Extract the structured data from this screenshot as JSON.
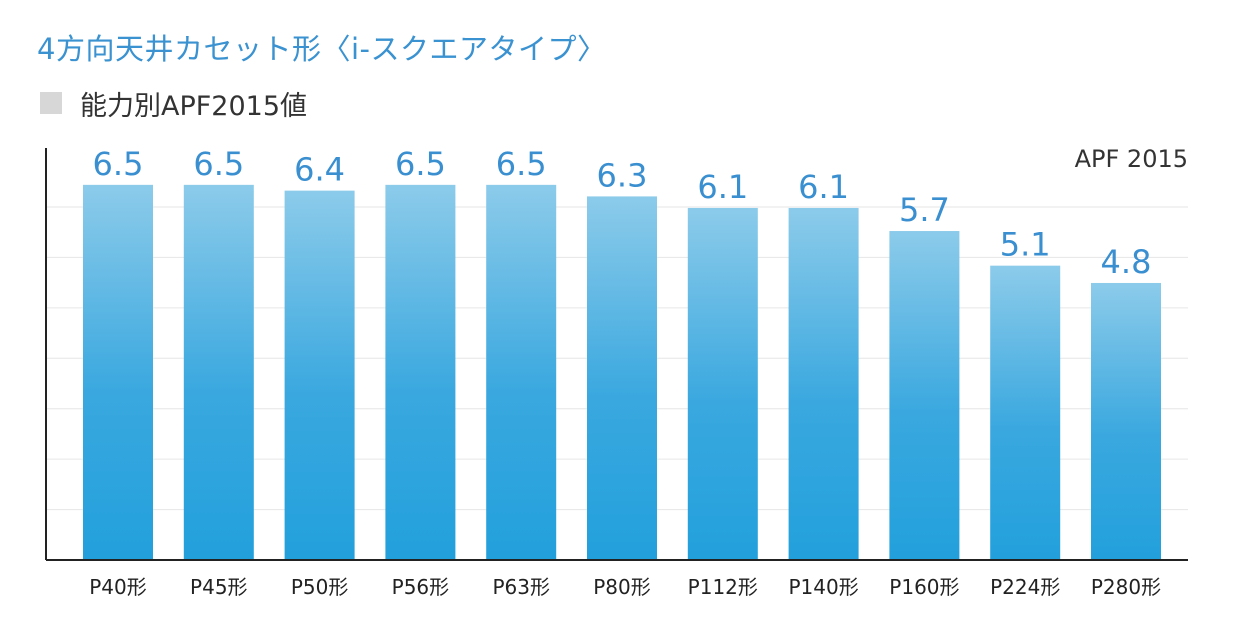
{
  "title": "4方向天井カセット形〈i-スクエアタイプ〉",
  "legend_label": "能力別APF2015値",
  "colors": {
    "title": "#3a92d1",
    "bar_top": "#8ccbea",
    "bar_bottom": "#22a0dc",
    "value_label": "#3a8fd0",
    "legend_swatch": "#d7d7d7",
    "gridline": "#e6e6e6",
    "axis": "#222222"
  },
  "chart_data": {
    "type": "bar",
    "unit_label": "APF 2015",
    "categories": [
      "P40形",
      "P45形",
      "P50形",
      "P56形",
      "P63形",
      "P80形",
      "P112形",
      "P140形",
      "P160形",
      "P224形",
      "P280形"
    ],
    "values": [
      6.5,
      6.5,
      6.4,
      6.5,
      6.5,
      6.3,
      6.1,
      6.1,
      5.7,
      5.1,
      4.8
    ],
    "value_labels": [
      "6.5",
      "6.5",
      "6.4",
      "6.5",
      "6.5",
      "6.3",
      "6.1",
      "6.1",
      "5.7",
      "5.1",
      "4.8"
    ],
    "ylim": [
      0,
      7
    ],
    "grid": true,
    "legend_position": "top-left"
  }
}
